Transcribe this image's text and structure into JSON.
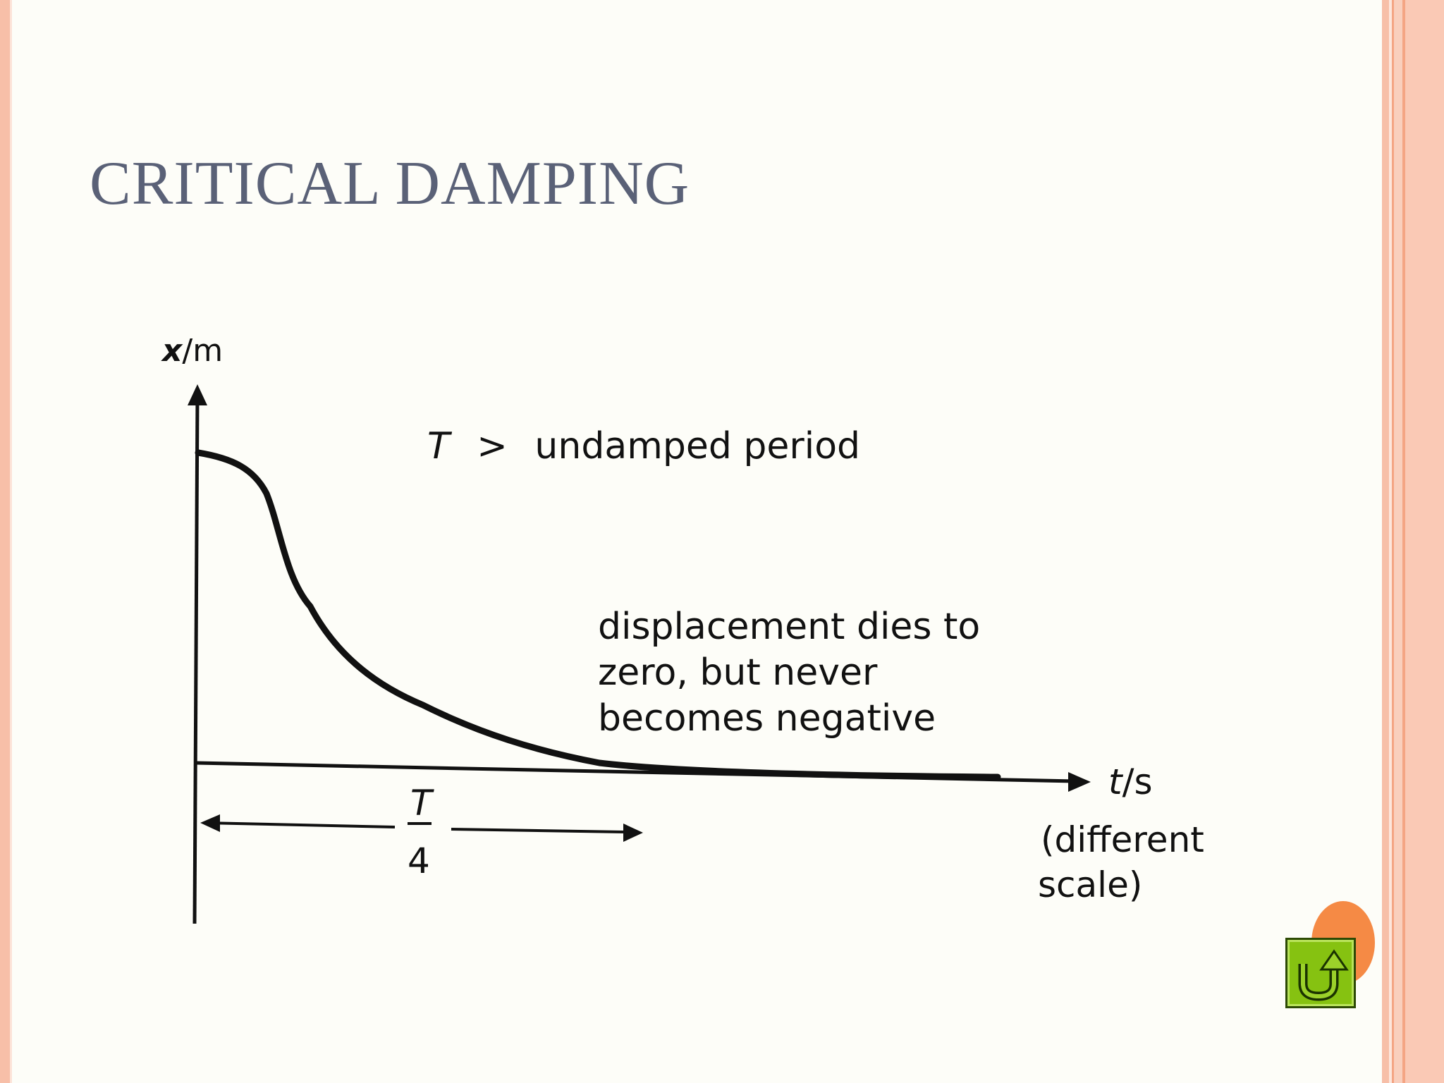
{
  "slide": {
    "title": "CRITICAL DAMPING"
  },
  "diagram": {
    "y_axis_label_var": "x",
    "y_axis_label_unit": "/m",
    "x_axis_label_var": "t",
    "x_axis_label_unit": "/s",
    "x_axis_note_line1": "(different",
    "x_axis_note_line2": "scale)",
    "period_var": "T",
    "period_relation": ">",
    "period_text": "undamped period",
    "annotation_line1": "displacement dies to",
    "annotation_line2": "zero, but never",
    "annotation_line3": "becomes negative",
    "interval_numerator": "T",
    "interval_denominator": "4"
  },
  "navigation": {
    "home_icon": "return-arrow-icon"
  },
  "colors": {
    "background": "#fdfdf8",
    "title": "#5a6177",
    "border_pink": "#f7bfa8",
    "accent_orange": "#f58a45",
    "button_green": "#86c211"
  }
}
